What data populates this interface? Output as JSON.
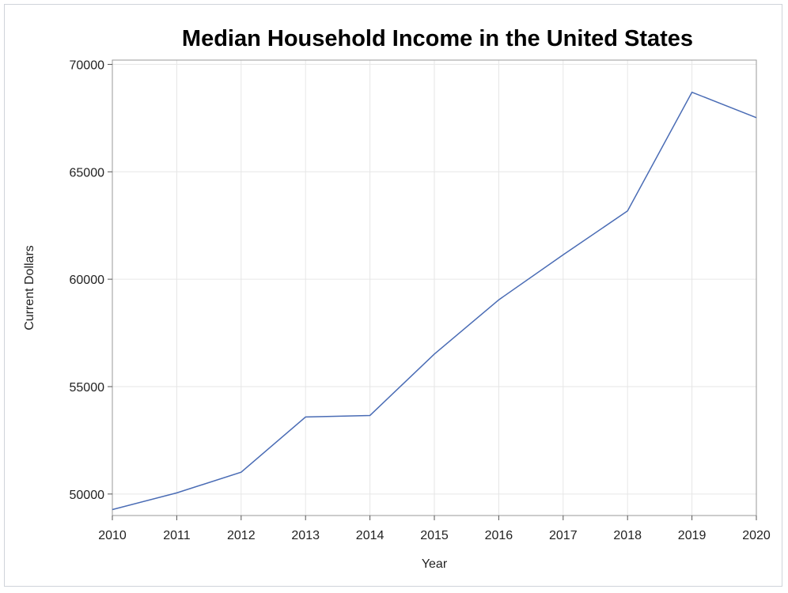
{
  "chart_data": {
    "type": "line",
    "title": "Median Household Income in the United States",
    "xlabel": "Year",
    "ylabel": "Current Dollars",
    "x": [
      "2010",
      "2011",
      "2012",
      "2013",
      "2014",
      "2015",
      "2016",
      "2017",
      "2018",
      "2019",
      "2020"
    ],
    "series": [
      {
        "values": [
          49276,
          50054,
          51017,
          53585,
          53657,
          56516,
          59039,
          61136,
          63179,
          68703,
          67521
        ],
        "color": "#4a6cb5"
      }
    ],
    "xlim": [
      2010,
      2020
    ],
    "ylim": [
      49000,
      70200
    ],
    "yticks": [
      "50000",
      "55000",
      "60000",
      "65000",
      "70000"
    ],
    "grid": true,
    "legend": "none"
  }
}
